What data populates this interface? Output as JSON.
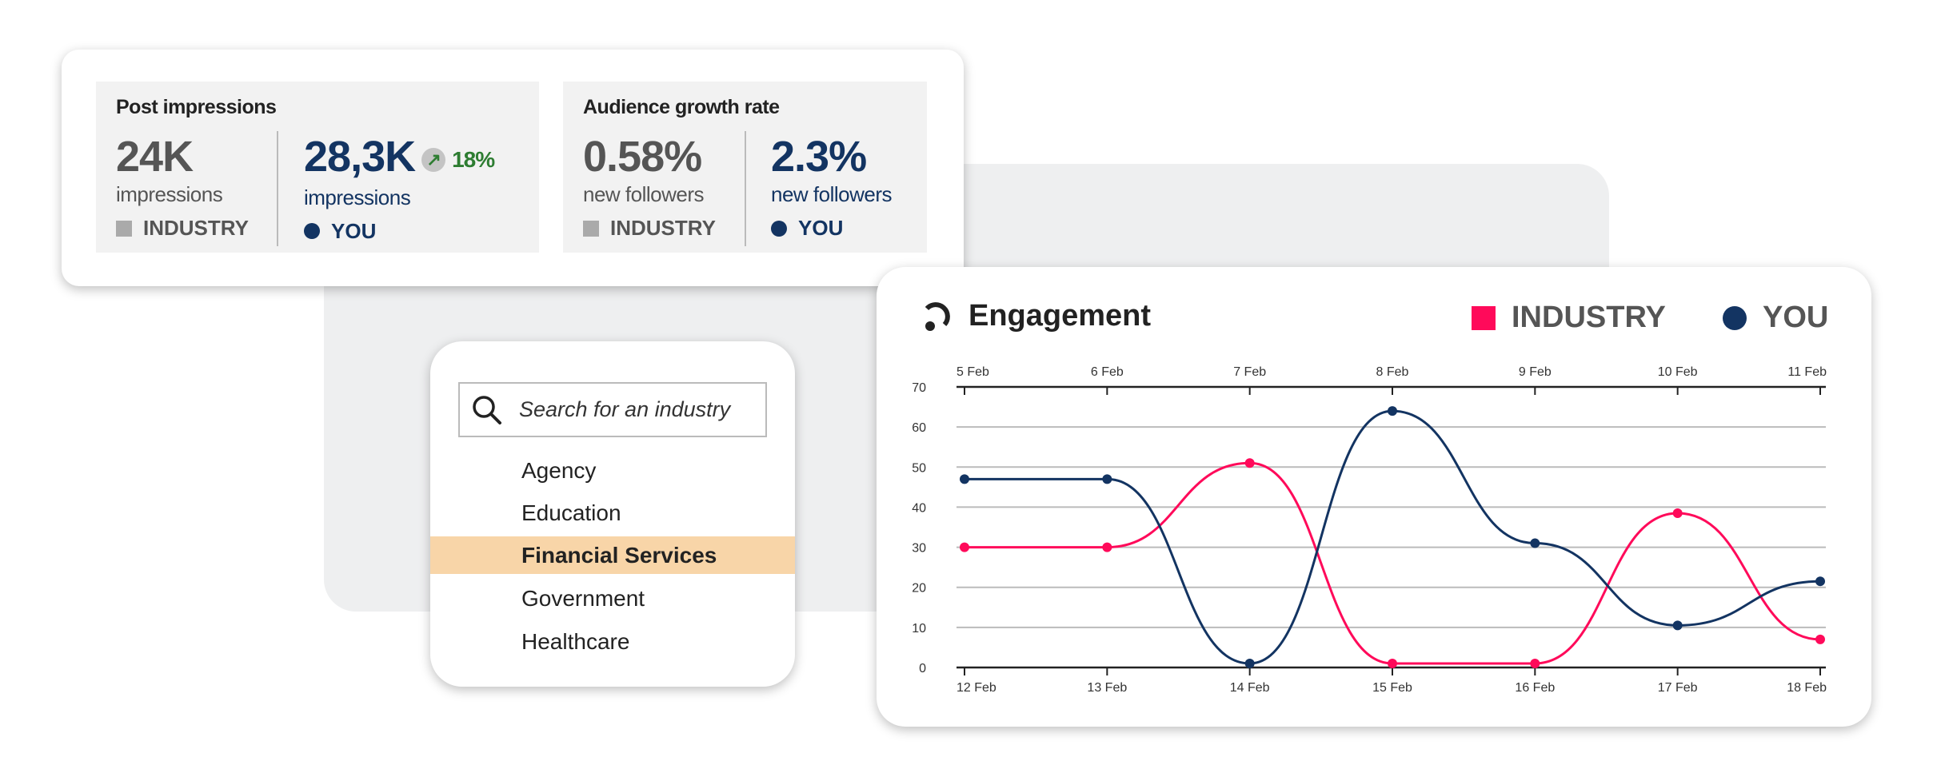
{
  "stats": {
    "impressions": {
      "title": "Post impressions",
      "industry_value": "24K",
      "industry_unit": "impressions",
      "industry_label": "INDUSTRY",
      "you_value": "28,3K",
      "you_unit": "impressions",
      "you_label": "YOU",
      "change": "18%",
      "change_icon": "arrow-up-right-icon"
    },
    "growth": {
      "title": "Audience growth rate",
      "industry_value": "0.58%",
      "industry_unit": "new followers",
      "industry_label": "INDUSTRY",
      "you_value": "2.3%",
      "you_unit": "new followers",
      "you_label": "YOU"
    }
  },
  "search": {
    "placeholder": "Search for an industry",
    "items": [
      {
        "label": "Agency"
      },
      {
        "label": "Education"
      },
      {
        "label": "Financial Services",
        "selected": true
      },
      {
        "label": "Government"
      },
      {
        "label": "Healthcare"
      }
    ]
  },
  "colors": {
    "industry": "#ff0a5a",
    "you": "#133462",
    "positive": "#2e7d32"
  },
  "chart_data": {
    "type": "line",
    "title": "Engagement",
    "legend": [
      "INDUSTRY",
      "YOU"
    ],
    "legend_placement": "top-right",
    "x_bottom": [
      "12 Feb",
      "13 Feb",
      "14 Feb",
      "15 Feb",
      "16 Feb",
      "17 Feb",
      "18 Feb"
    ],
    "x_top": [
      "5 Feb",
      "6 Feb",
      "7 Feb",
      "8 Feb",
      "9 Feb",
      "10 Feb",
      "11 Feb"
    ],
    "yticks": [
      0,
      10,
      20,
      30,
      40,
      50,
      60,
      70
    ],
    "ylim": [
      0,
      70
    ],
    "grid": true,
    "series": [
      {
        "name": "INDUSTRY",
        "color": "#ff0a5a",
        "values": [
          30,
          30,
          51,
          1,
          1,
          38.5,
          7
        ]
      },
      {
        "name": "YOU",
        "color": "#133462",
        "values": [
          47,
          47,
          1,
          64,
          31,
          10.5,
          21.5
        ]
      }
    ]
  }
}
